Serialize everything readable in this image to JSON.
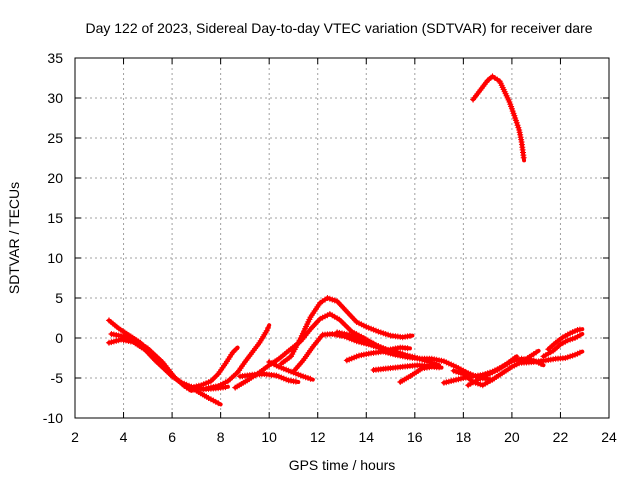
{
  "chart_data": {
    "type": "scatter",
    "title": "Day 122 of 2023, Sidereal Day-to-day VTEC variation (SDTVAR) for receiver dare",
    "xlabel": "GPS time / hours",
    "ylabel": "SDTVAR / TECUs",
    "xlim": [
      2,
      24
    ],
    "ylim": [
      -10,
      35
    ],
    "xticks": [
      "2",
      "4",
      "6",
      "8",
      "10",
      "12",
      "14",
      "16",
      "18",
      "20",
      "22",
      "24"
    ],
    "yticks": [
      "-10",
      "-5",
      "0",
      "5",
      "10",
      "15",
      "20",
      "25",
      "30",
      "35"
    ],
    "grid": true,
    "marker": "+",
    "series_color": "#ff0000",
    "series": [
      {
        "name": "track-a",
        "points": [
          [
            3.4,
            2.2
          ],
          [
            3.8,
            1.2
          ],
          [
            4.3,
            0.2
          ],
          [
            4.7,
            -0.6
          ],
          [
            5.1,
            -2.0
          ],
          [
            5.5,
            -3.3
          ],
          [
            6.0,
            -4.8
          ],
          [
            6.4,
            -5.6
          ],
          [
            6.8,
            -6.1
          ],
          [
            7.3,
            -6.4
          ],
          [
            7.8,
            -6.3
          ],
          [
            8.3,
            -6.1
          ]
        ]
      },
      {
        "name": "track-b",
        "points": [
          [
            3.4,
            -0.6
          ],
          [
            3.9,
            -0.2
          ],
          [
            4.4,
            -0.5
          ],
          [
            4.9,
            -1.5
          ],
          [
            5.3,
            -2.8
          ],
          [
            5.8,
            -4.2
          ],
          [
            6.2,
            -5.2
          ],
          [
            6.6,
            -6.1
          ],
          [
            7.0,
            -6.6
          ],
          [
            7.5,
            -7.5
          ],
          [
            8.0,
            -8.3
          ]
        ]
      },
      {
        "name": "track-c",
        "points": [
          [
            3.5,
            0.5
          ],
          [
            4.0,
            0.2
          ],
          [
            4.5,
            -0.3
          ],
          [
            5.0,
            -1.3
          ],
          [
            5.6,
            -3.0
          ],
          [
            6.1,
            -4.9
          ],
          [
            6.5,
            -6.0
          ],
          [
            6.8,
            -6.6
          ]
        ]
      },
      {
        "name": "track-d",
        "points": [
          [
            6.8,
            -6.2
          ],
          [
            7.2,
            -5.9
          ],
          [
            7.6,
            -5.4
          ],
          [
            7.9,
            -4.5
          ],
          [
            8.2,
            -3.2
          ],
          [
            8.5,
            -1.8
          ],
          [
            8.7,
            -1.2
          ]
        ]
      },
      {
        "name": "track-e",
        "points": [
          [
            7.4,
            -6.3
          ],
          [
            7.9,
            -6.0
          ],
          [
            8.3,
            -5.4
          ],
          [
            8.7,
            -4.3
          ],
          [
            9.0,
            -3.0
          ],
          [
            9.3,
            -1.8
          ],
          [
            9.6,
            -0.6
          ],
          [
            9.9,
            0.9
          ],
          [
            10.0,
            1.6
          ]
        ]
      },
      {
        "name": "track-f",
        "points": [
          [
            8.8,
            -4.8
          ],
          [
            9.3,
            -4.6
          ],
          [
            9.8,
            -4.5
          ],
          [
            10.3,
            -4.7
          ],
          [
            10.8,
            -5.3
          ],
          [
            11.2,
            -5.5
          ]
        ]
      },
      {
        "name": "track-g",
        "points": [
          [
            10.0,
            -3.0
          ],
          [
            10.4,
            -3.6
          ],
          [
            10.9,
            -4.2
          ],
          [
            11.4,
            -4.8
          ],
          [
            11.8,
            -5.2
          ]
        ]
      },
      {
        "name": "track-h",
        "points": [
          [
            8.6,
            -6.2
          ],
          [
            9.1,
            -5.3
          ],
          [
            9.6,
            -4.3
          ],
          [
            10.0,
            -3.4
          ],
          [
            10.4,
            -2.6
          ],
          [
            10.8,
            -1.6
          ],
          [
            11.3,
            -0.4
          ],
          [
            11.7,
            1.1
          ],
          [
            12.1,
            2.4
          ],
          [
            12.5,
            3.0
          ],
          [
            12.9,
            2.3
          ],
          [
            13.4,
            0.8
          ],
          [
            13.9,
            0.0
          ],
          [
            14.4,
            -0.9
          ],
          [
            14.9,
            -1.5
          ],
          [
            15.4,
            -1.2
          ],
          [
            15.8,
            -1.3
          ]
        ]
      },
      {
        "name": "track-i",
        "points": [
          [
            10.5,
            -3.2
          ],
          [
            10.9,
            -2.3
          ],
          [
            11.3,
            0.0
          ],
          [
            11.7,
            2.6
          ],
          [
            12.1,
            4.4
          ],
          [
            12.4,
            5.0
          ],
          [
            12.8,
            4.6
          ],
          [
            13.2,
            3.3
          ],
          [
            13.6,
            2.0
          ],
          [
            14.0,
            1.4
          ],
          [
            14.5,
            0.8
          ],
          [
            15.0,
            0.3
          ],
          [
            15.5,
            0.1
          ],
          [
            15.9,
            0.3
          ]
        ]
      },
      {
        "name": "track-j",
        "points": [
          [
            11.0,
            -4.2
          ],
          [
            11.4,
            -2.8
          ],
          [
            11.8,
            -1.1
          ],
          [
            12.2,
            0.4
          ],
          [
            12.6,
            0.5
          ],
          [
            13.1,
            0.2
          ],
          [
            13.6,
            -0.4
          ],
          [
            14.1,
            -0.8
          ],
          [
            14.6,
            -1.3
          ],
          [
            15.1,
            -1.6
          ],
          [
            15.6,
            -2.1
          ],
          [
            16.1,
            -2.5
          ],
          [
            16.6,
            -3.0
          ],
          [
            17.0,
            -3.4
          ]
        ]
      },
      {
        "name": "track-k",
        "points": [
          [
            12.8,
            0.7
          ],
          [
            13.3,
            0.4
          ],
          [
            13.8,
            -0.2
          ],
          [
            14.3,
            -0.7
          ],
          [
            14.8,
            -1.5
          ],
          [
            15.2,
            -2.1
          ]
        ]
      },
      {
        "name": "track-l",
        "points": [
          [
            13.2,
            -2.8
          ],
          [
            13.7,
            -2.2
          ],
          [
            14.2,
            -1.9
          ],
          [
            14.7,
            -1.7
          ],
          [
            15.2,
            -2.1
          ],
          [
            15.7,
            -2.4
          ],
          [
            16.2,
            -2.6
          ],
          [
            16.7,
            -2.6
          ],
          [
            17.2,
            -2.9
          ],
          [
            17.7,
            -3.6
          ],
          [
            18.2,
            -4.4
          ],
          [
            18.7,
            -5.0
          ],
          [
            19.2,
            -5.2
          ]
        ]
      },
      {
        "name": "track-m",
        "points": [
          [
            14.3,
            -4.0
          ],
          [
            14.9,
            -3.8
          ],
          [
            15.5,
            -3.6
          ],
          [
            16.1,
            -3.4
          ],
          [
            16.7,
            -3.5
          ]
        ]
      },
      {
        "name": "track-n",
        "points": [
          [
            15.4,
            -5.5
          ],
          [
            15.9,
            -4.6
          ],
          [
            16.3,
            -3.8
          ],
          [
            16.7,
            -3.6
          ],
          [
            17.1,
            -3.7
          ]
        ]
      },
      {
        "name": "track-o",
        "points": [
          [
            17.2,
            -5.6
          ],
          [
            17.6,
            -5.3
          ],
          [
            18.0,
            -5.0
          ],
          [
            18.4,
            -4.8
          ],
          [
            18.8,
            -4.6
          ],
          [
            19.2,
            -4.2
          ],
          [
            19.6,
            -3.6
          ],
          [
            20.0,
            -2.9
          ],
          [
            20.4,
            -2.6
          ],
          [
            20.9,
            -2.8
          ],
          [
            21.3,
            -3.4
          ]
        ]
      },
      {
        "name": "track-p",
        "points": [
          [
            17.6,
            -4.1
          ],
          [
            18.0,
            -4.5
          ],
          [
            18.4,
            -5.5
          ],
          [
            18.8,
            -5.9
          ],
          [
            19.2,
            -5.2
          ],
          [
            19.6,
            -4.4
          ],
          [
            20.0,
            -3.6
          ],
          [
            20.4,
            -3.0
          ],
          [
            20.8,
            -2.2
          ],
          [
            21.1,
            -1.6
          ]
        ]
      },
      {
        "name": "track-q",
        "points": [
          [
            18.2,
            -5.9
          ],
          [
            18.6,
            -5.2
          ],
          [
            19.0,
            -4.6
          ],
          [
            19.4,
            -4.0
          ],
          [
            19.8,
            -3.2
          ],
          [
            20.2,
            -2.3
          ]
        ]
      },
      {
        "name": "track-r",
        "points": [
          [
            20.4,
            -3.1
          ],
          [
            20.9,
            -3.0
          ],
          [
            21.4,
            -2.8
          ],
          [
            21.8,
            -2.6
          ],
          [
            22.2,
            -2.5
          ],
          [
            22.6,
            -2.1
          ],
          [
            22.9,
            -1.7
          ]
        ]
      },
      {
        "name": "track-s",
        "points": [
          [
            21.5,
            -1.4
          ],
          [
            21.8,
            -0.6
          ],
          [
            22.1,
            0.1
          ],
          [
            22.4,
            0.6
          ],
          [
            22.7,
            1.0
          ],
          [
            22.9,
            1.1
          ]
        ]
      },
      {
        "name": "track-t",
        "points": [
          [
            21.3,
            -2.3
          ],
          [
            21.7,
            -1.6
          ],
          [
            22.0,
            -0.8
          ],
          [
            22.3,
            -0.3
          ],
          [
            22.6,
            0.0
          ],
          [
            22.9,
            0.5
          ]
        ]
      },
      {
        "name": "track-u",
        "points": [
          [
            18.4,
            29.8
          ],
          [
            18.7,
            31.0
          ],
          [
            19.0,
            32.2
          ],
          [
            19.2,
            32.7
          ],
          [
            19.5,
            32.1
          ],
          [
            19.7,
            30.8
          ],
          [
            19.9,
            29.5
          ],
          [
            20.1,
            27.8
          ],
          [
            20.3,
            26.0
          ],
          [
            20.4,
            24.5
          ],
          [
            20.5,
            22.2
          ]
        ]
      }
    ]
  }
}
